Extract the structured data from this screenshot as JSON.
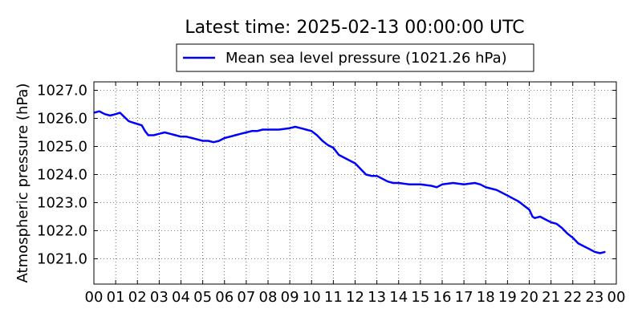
{
  "chart_data": {
    "type": "line",
    "title": "Latest time: 2025-02-13 00:00:00 UTC",
    "ylabel": "Atmospheric pressure (hPa)",
    "xlabel": "",
    "xlim": [
      0,
      24
    ],
    "ylim": [
      1020.1,
      1027.3
    ],
    "grid": true,
    "legend_position": "top-center",
    "x_tick_labels": [
      "00",
      "01",
      "02",
      "03",
      "04",
      "05",
      "06",
      "07",
      "08",
      "09",
      "10",
      "11",
      "12",
      "13",
      "14",
      "15",
      "16",
      "17",
      "18",
      "19",
      "20",
      "21",
      "22",
      "23",
      "00"
    ],
    "y_ticks": [
      1021.0,
      1022.0,
      1023.0,
      1024.0,
      1025.0,
      1026.0,
      1027.0
    ],
    "y_tick_labels": [
      "1021.0",
      "1022.0",
      "1023.0",
      "1024.0",
      "1025.0",
      "1026.0",
      "1027.0"
    ],
    "series": [
      {
        "name": "Mean sea level pressure (1021.26 hPa)",
        "color": "#0000ff",
        "points": [
          [
            0.0,
            1026.2
          ],
          [
            0.25,
            1026.25
          ],
          [
            0.5,
            1026.15
          ],
          [
            0.75,
            1026.1
          ],
          [
            1.0,
            1026.15
          ],
          [
            1.2,
            1026.2
          ],
          [
            1.4,
            1026.05
          ],
          [
            1.6,
            1025.9
          ],
          [
            1.8,
            1025.85
          ],
          [
            2.0,
            1025.8
          ],
          [
            2.2,
            1025.75
          ],
          [
            2.35,
            1025.55
          ],
          [
            2.5,
            1025.4
          ],
          [
            2.75,
            1025.4
          ],
          [
            3.0,
            1025.45
          ],
          [
            3.25,
            1025.5
          ],
          [
            3.5,
            1025.45
          ],
          [
            3.75,
            1025.4
          ],
          [
            4.0,
            1025.35
          ],
          [
            4.25,
            1025.35
          ],
          [
            4.5,
            1025.3
          ],
          [
            4.75,
            1025.25
          ],
          [
            5.0,
            1025.2
          ],
          [
            5.25,
            1025.2
          ],
          [
            5.5,
            1025.15
          ],
          [
            5.75,
            1025.2
          ],
          [
            6.0,
            1025.3
          ],
          [
            6.25,
            1025.35
          ],
          [
            6.5,
            1025.4
          ],
          [
            6.75,
            1025.45
          ],
          [
            7.0,
            1025.5
          ],
          [
            7.25,
            1025.55
          ],
          [
            7.5,
            1025.55
          ],
          [
            7.75,
            1025.6
          ],
          [
            8.0,
            1025.6
          ],
          [
            8.5,
            1025.6
          ],
          [
            9.0,
            1025.65
          ],
          [
            9.25,
            1025.7
          ],
          [
            9.5,
            1025.65
          ],
          [
            9.75,
            1025.6
          ],
          [
            10.0,
            1025.55
          ],
          [
            10.25,
            1025.4
          ],
          [
            10.5,
            1025.2
          ],
          [
            10.75,
            1025.05
          ],
          [
            11.0,
            1024.95
          ],
          [
            11.25,
            1024.7
          ],
          [
            11.5,
            1024.6
          ],
          [
            11.75,
            1024.5
          ],
          [
            12.0,
            1024.4
          ],
          [
            12.25,
            1024.2
          ],
          [
            12.5,
            1024.0
          ],
          [
            12.75,
            1023.95
          ],
          [
            13.0,
            1023.95
          ],
          [
            13.25,
            1023.85
          ],
          [
            13.5,
            1023.75
          ],
          [
            13.75,
            1023.7
          ],
          [
            14.0,
            1023.7
          ],
          [
            14.5,
            1023.65
          ],
          [
            15.0,
            1023.65
          ],
          [
            15.5,
            1023.6
          ],
          [
            15.75,
            1023.55
          ],
          [
            16.0,
            1023.65
          ],
          [
            16.5,
            1023.7
          ],
          [
            17.0,
            1023.65
          ],
          [
            17.5,
            1023.7
          ],
          [
            17.75,
            1023.65
          ],
          [
            18.0,
            1023.55
          ],
          [
            18.25,
            1023.5
          ],
          [
            18.5,
            1023.45
          ],
          [
            18.75,
            1023.35
          ],
          [
            19.0,
            1023.25
          ],
          [
            19.25,
            1023.15
          ],
          [
            19.5,
            1023.05
          ],
          [
            19.75,
            1022.9
          ],
          [
            20.0,
            1022.75
          ],
          [
            20.15,
            1022.5
          ],
          [
            20.25,
            1022.45
          ],
          [
            20.5,
            1022.5
          ],
          [
            20.75,
            1022.4
          ],
          [
            21.0,
            1022.3
          ],
          [
            21.25,
            1022.25
          ],
          [
            21.5,
            1022.1
          ],
          [
            21.75,
            1021.9
          ],
          [
            22.0,
            1021.75
          ],
          [
            22.25,
            1021.55
          ],
          [
            22.5,
            1021.45
          ],
          [
            22.75,
            1021.35
          ],
          [
            23.0,
            1021.25
          ],
          [
            23.25,
            1021.2
          ],
          [
            23.5,
            1021.25
          ]
        ]
      }
    ]
  }
}
